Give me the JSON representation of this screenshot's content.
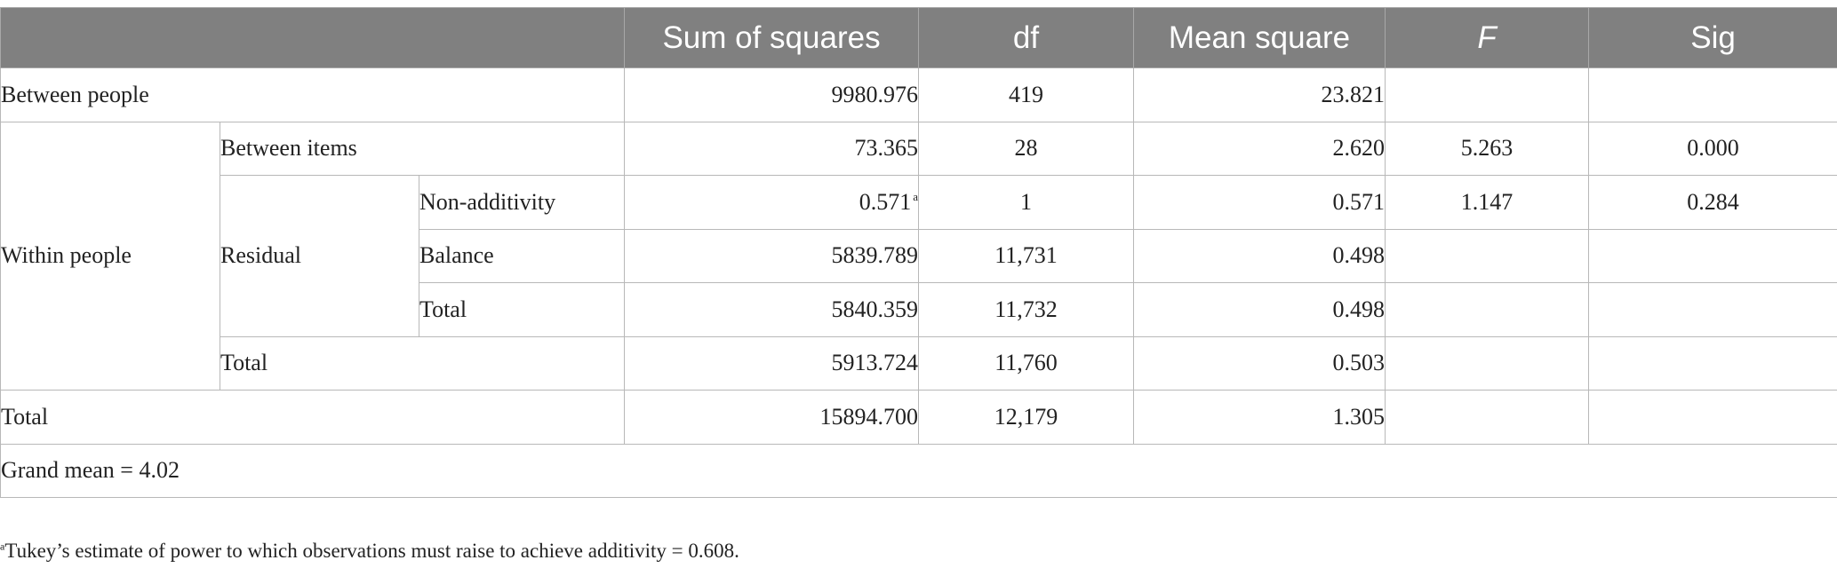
{
  "table": {
    "headers": {
      "blank": "",
      "sum_of_squares": "Sum of squares",
      "df": "df",
      "mean_square": "Mean square",
      "f": "F",
      "sig": "Sig"
    },
    "rows": {
      "between_people": {
        "label": "Between people",
        "ss": "9980.976",
        "df": "419",
        "ms": "23.821",
        "f": "",
        "sig": ""
      },
      "within_people": {
        "label": "Within people",
        "between_items": {
          "label": "Between items",
          "ss": "73.365",
          "df": "28",
          "ms": "2.620",
          "f": "5.263",
          "sig": "0.000"
        },
        "residual": {
          "label": "Residual",
          "non_additivity": {
            "label": "Non-additivity",
            "ss": "0.571",
            "ss_note": "a",
            "df": "1",
            "ms": "0.571",
            "f": "1.147",
            "sig": "0.284"
          },
          "balance": {
            "label": "Balance",
            "ss": "5839.789",
            "df": "11,731",
            "ms": "0.498"
          },
          "total": {
            "label": "Total",
            "ss": "5840.359",
            "df": "11,732",
            "ms": "0.498"
          }
        },
        "total": {
          "label": "Total",
          "ss": "5913.724",
          "df": "11,760",
          "ms": "0.503"
        }
      },
      "total": {
        "label": "Total",
        "ss": "15894.700",
        "df": "12,179",
        "ms": "1.305"
      },
      "grand_mean": "Grand mean = 4.02"
    }
  },
  "footnote": {
    "marker": "a",
    "text": "Tukey’s estimate of power to which observations must raise to achieve additivity = 0.608."
  },
  "colors": {
    "header_bg": "#808080",
    "header_text": "#ffffff",
    "border": "#b8b8b8",
    "body_text": "#222222"
  }
}
